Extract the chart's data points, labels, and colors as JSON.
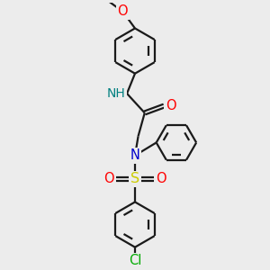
{
  "bg_color": "#ececec",
  "bond_color": "#1a1a1a",
  "bond_width": 1.6,
  "atom_colors": {
    "O": "#ff0000",
    "N": "#0000cc",
    "NH": "#008080",
    "S": "#cccc00",
    "Cl": "#00aa00",
    "C": "#1a1a1a"
  },
  "font_size": 9.5,
  "fig_size": [
    3.0,
    3.0
  ],
  "dpi": 100,
  "ring_r": 0.52,
  "inner_ring_r": 0.34
}
